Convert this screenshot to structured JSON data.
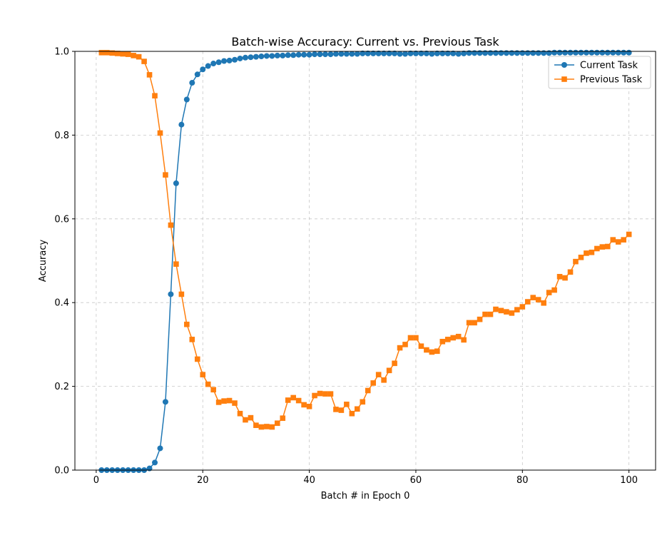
{
  "chart_data": {
    "type": "line",
    "title": "Batch-wise Accuracy: Current vs. Previous Task",
    "xlabel": "Batch # in Epoch 0",
    "ylabel": "Accuracy",
    "xlim": [
      -4,
      105
    ],
    "ylim": [
      0.0,
      1.0
    ],
    "xticks": [
      0,
      20,
      40,
      60,
      80,
      100
    ],
    "yticks": [
      0.0,
      0.2,
      0.4,
      0.6,
      0.8,
      1.0
    ],
    "xtick_labels": [
      "0",
      "20",
      "40",
      "60",
      "80",
      "100"
    ],
    "ytick_labels": [
      "0.0",
      "0.2",
      "0.4",
      "0.6",
      "0.8",
      "1.0"
    ],
    "grid": true,
    "legend_position": "top-right",
    "series": [
      {
        "name": "Current Task",
        "color": "#1f77b4",
        "marker": "circle",
        "x": [
          1,
          2,
          3,
          4,
          5,
          6,
          7,
          8,
          9,
          10,
          11,
          12,
          13,
          14,
          15,
          16,
          17,
          18,
          19,
          20,
          21,
          22,
          23,
          24,
          25,
          26,
          27,
          28,
          29,
          30,
          31,
          32,
          33,
          34,
          35,
          36,
          37,
          38,
          39,
          40,
          41,
          42,
          43,
          44,
          45,
          46,
          47,
          48,
          49,
          50,
          51,
          52,
          53,
          54,
          55,
          56,
          57,
          58,
          59,
          60,
          61,
          62,
          63,
          64,
          65,
          66,
          67,
          68,
          69,
          70,
          71,
          72,
          73,
          74,
          75,
          76,
          77,
          78,
          79,
          80,
          81,
          82,
          83,
          84,
          85,
          86,
          87,
          88,
          89,
          90,
          91,
          92,
          93,
          94,
          95,
          96,
          97,
          98,
          99,
          100
        ],
        "values": [
          0.0,
          0.0,
          0.0,
          0.0,
          0.0,
          0.0,
          0.0,
          0.0,
          0.0,
          0.004,
          0.018,
          0.052,
          0.163,
          0.42,
          0.685,
          0.825,
          0.885,
          0.925,
          0.945,
          0.957,
          0.965,
          0.971,
          0.974,
          0.977,
          0.978,
          0.98,
          0.983,
          0.985,
          0.986,
          0.987,
          0.988,
          0.989,
          0.989,
          0.99,
          0.99,
          0.991,
          0.991,
          0.992,
          0.992,
          0.992,
          0.993,
          0.993,
          0.993,
          0.993,
          0.994,
          0.994,
          0.994,
          0.994,
          0.994,
          0.995,
          0.995,
          0.995,
          0.995,
          0.995,
          0.995,
          0.995,
          0.994,
          0.994,
          0.995,
          0.995,
          0.995,
          0.995,
          0.994,
          0.995,
          0.995,
          0.995,
          0.995,
          0.994,
          0.995,
          0.996,
          0.996,
          0.996,
          0.996,
          0.996,
          0.996,
          0.996,
          0.996,
          0.996,
          0.996,
          0.996,
          0.996,
          0.996,
          0.996,
          0.996,
          0.996,
          0.997,
          0.997,
          0.997,
          0.997,
          0.997,
          0.997,
          0.997,
          0.997,
          0.997,
          0.997,
          0.997,
          0.997,
          0.997,
          0.997,
          0.997
        ]
      },
      {
        "name": "Previous Task",
        "color": "#ff7f0e",
        "marker": "square",
        "x": [
          1,
          2,
          3,
          4,
          5,
          6,
          7,
          8,
          9,
          10,
          11,
          12,
          13,
          14,
          15,
          16,
          17,
          18,
          19,
          20,
          21,
          22,
          23,
          24,
          25,
          26,
          27,
          28,
          29,
          30,
          31,
          32,
          33,
          34,
          35,
          36,
          37,
          38,
          39,
          40,
          41,
          42,
          43,
          44,
          45,
          46,
          47,
          48,
          49,
          50,
          51,
          52,
          53,
          54,
          55,
          56,
          57,
          58,
          59,
          60,
          61,
          62,
          63,
          64,
          65,
          66,
          67,
          68,
          69,
          70,
          71,
          72,
          73,
          74,
          75,
          76,
          77,
          78,
          79,
          80,
          81,
          82,
          83,
          84,
          85,
          86,
          87,
          88,
          89,
          90,
          91,
          92,
          93,
          94,
          95,
          96,
          97,
          98,
          99,
          100
        ],
        "values": [
          0.997,
          0.997,
          0.996,
          0.995,
          0.994,
          0.993,
          0.99,
          0.987,
          0.976,
          0.944,
          0.894,
          0.805,
          0.705,
          0.585,
          0.492,
          0.42,
          0.348,
          0.312,
          0.265,
          0.228,
          0.205,
          0.192,
          0.162,
          0.165,
          0.166,
          0.16,
          0.135,
          0.12,
          0.125,
          0.107,
          0.103,
          0.104,
          0.103,
          0.112,
          0.124,
          0.167,
          0.173,
          0.166,
          0.156,
          0.152,
          0.178,
          0.183,
          0.182,
          0.182,
          0.145,
          0.143,
          0.157,
          0.135,
          0.146,
          0.163,
          0.19,
          0.208,
          0.228,
          0.215,
          0.238,
          0.255,
          0.292,
          0.3,
          0.316,
          0.316,
          0.296,
          0.287,
          0.282,
          0.284,
          0.307,
          0.312,
          0.316,
          0.319,
          0.311,
          0.352,
          0.352,
          0.36,
          0.372,
          0.372,
          0.384,
          0.381,
          0.378,
          0.375,
          0.383,
          0.39,
          0.402,
          0.412,
          0.407,
          0.399,
          0.424,
          0.43,
          0.462,
          0.459,
          0.473,
          0.498,
          0.508,
          0.518,
          0.52,
          0.529,
          0.533,
          0.534,
          0.55,
          0.545,
          0.55,
          0.563
        ]
      }
    ]
  }
}
